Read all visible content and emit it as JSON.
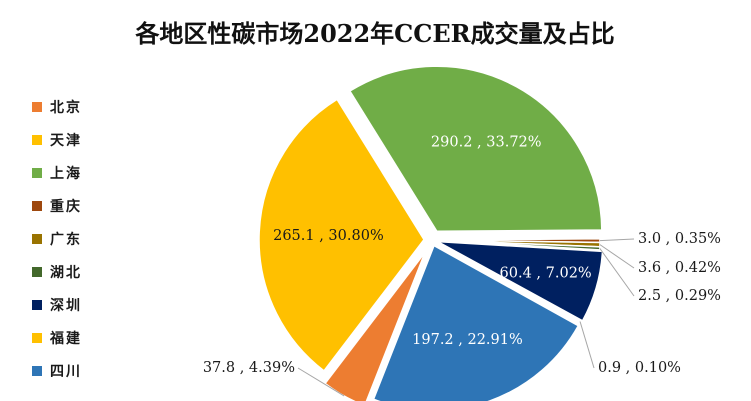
{
  "chart_data": {
    "type": "pie",
    "title": "各地区性碳市场2022年CCER成交量及占比",
    "series": [
      {
        "name": "北京",
        "value": 37.8,
        "percent": "4.39%",
        "color": "#ed7d31",
        "label": "37.8 , 4.39%"
      },
      {
        "name": "天津",
        "value": 265.1,
        "percent": "30.80%",
        "color": "#ffc000",
        "label": "265.1 , 30.80%"
      },
      {
        "name": "上海",
        "value": 290.2,
        "percent": "33.72%",
        "color": "#70ad47",
        "label": "290.2 , 33.72%"
      },
      {
        "name": "重庆",
        "value": 3.0,
        "percent": "0.35%",
        "color": "#9e480e",
        "label": "3.0 , 0.35%"
      },
      {
        "name": "广东",
        "value": 3.6,
        "percent": "0.42%",
        "color": "#997300",
        "label": "3.6 , 0.42%"
      },
      {
        "name": "湖北",
        "value": 2.5,
        "percent": "0.29%",
        "color": "#43682b",
        "label": "2.5 , 0.29%"
      },
      {
        "name": "深圳",
        "value": 60.4,
        "percent": "7.02%",
        "color": "#002060",
        "label": "60.4 , 7.02%"
      },
      {
        "name": "福建",
        "value": 0.9,
        "percent": "0.10%",
        "color": "#ffc000",
        "label": "0.9 , 0.10%"
      },
      {
        "name": "四川",
        "value": 197.2,
        "percent": "22.91%",
        "color": "#2e75b6",
        "label": "197.2 , 22.91%"
      }
    ],
    "legend_position": "left"
  }
}
